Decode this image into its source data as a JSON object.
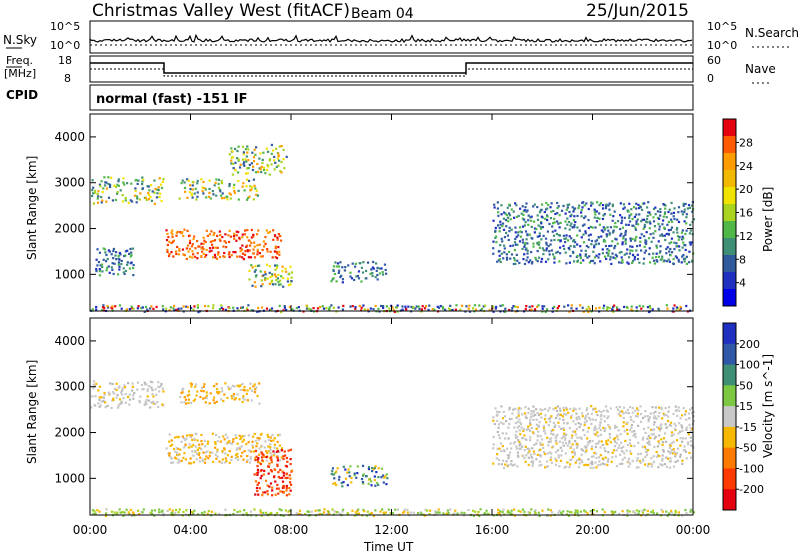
{
  "header": {
    "title": "Christmas Valley West (fitACF)",
    "beam": "Beam 04",
    "date": "25/Jun/2015"
  },
  "status_panels": {
    "nsky": {
      "label": "N.Sky",
      "ticks": [
        "10^5",
        "10^0"
      ],
      "right_label": "N.Search",
      "right_ticks": [
        "10^5",
        "10^0"
      ]
    },
    "freq": {
      "label_line1": "Freq.",
      "label_line2": "[MHz]",
      "ticks": [
        "18",
        "8"
      ],
      "right_label": "Nave",
      "right_ticks": [
        "60",
        "0"
      ]
    },
    "cpid": {
      "label": "CPID",
      "value": "normal (fast) -151 IF"
    }
  },
  "chart_data": [
    {
      "type": "heatmap",
      "name": "power-panel",
      "ylabel": "Slant Range [km]",
      "y_ticks": [
        "4000",
        "3000",
        "2000",
        "1000"
      ],
      "ylim": [
        200,
        4500
      ],
      "x_ticks": [
        "00:00",
        "04:00",
        "08:00",
        "12:00",
        "16:00",
        "20:00",
        "00:00"
      ],
      "xlim_hours": [
        0,
        24
      ],
      "colorbar": {
        "label": "Power [dB]",
        "ticks": [
          "28",
          "24",
          "20",
          "16",
          "12",
          "8",
          "4"
        ],
        "colors": [
          "#e4000f",
          "#ff5a00",
          "#ff9c00",
          "#f3b800",
          "#f0e300",
          "#a8d420",
          "#4fb848",
          "#3f8f76",
          "#305a9c",
          "#1f2fbf",
          "#0000e8"
        ]
      },
      "regions": [
        {
          "t": [
            0.0,
            2.9
          ],
          "r": [
            2550,
            3150
          ],
          "level": "mid"
        },
        {
          "t": [
            3.5,
            6.7
          ],
          "r": [
            2650,
            3100
          ],
          "level": "mid"
        },
        {
          "t": [
            5.5,
            7.8
          ],
          "r": [
            3200,
            3850
          ],
          "level": "mid"
        },
        {
          "t": [
            3.0,
            7.6
          ],
          "r": [
            1350,
            2000
          ],
          "level": "high"
        },
        {
          "t": [
            0.2,
            1.7
          ],
          "r": [
            1000,
            1600
          ],
          "level": "low"
        },
        {
          "t": [
            6.3,
            8.0
          ],
          "r": [
            750,
            1250
          ],
          "level": "mid"
        },
        {
          "t": [
            9.5,
            11.8
          ],
          "r": [
            850,
            1300
          ],
          "level": "low"
        },
        {
          "t": [
            16.0,
            24.0
          ],
          "r": [
            1250,
            2600
          ],
          "level": "low"
        },
        {
          "t": [
            0.0,
            24.0
          ],
          "r": [
            200,
            350
          ],
          "level": "mixed"
        }
      ]
    },
    {
      "type": "heatmap",
      "name": "velocity-panel",
      "ylabel": "Slant Range [km]",
      "y_ticks": [
        "4000",
        "3000",
        "2000",
        "1000"
      ],
      "ylim": [
        200,
        4500
      ],
      "x_ticks": [
        "00:00",
        "04:00",
        "08:00",
        "12:00",
        "16:00",
        "20:00",
        "00:00"
      ],
      "xlabel": "Time UT",
      "xlim_hours": [
        0,
        24
      ],
      "colorbar": {
        "label": "Velocity [m s^-1]",
        "ticks": [
          "200",
          "100",
          "50",
          "15",
          "-15",
          "-50",
          "-100",
          "-200"
        ],
        "colors": [
          "#1f2fbf",
          "#2f58a8",
          "#3f8f76",
          "#7cc842",
          "#c8c8c8",
          "#f6b800",
          "#ff7a00",
          "#ff3a00",
          "#e4000f"
        ]
      },
      "regions": [
        {
          "t": [
            0.0,
            2.9
          ],
          "r": [
            2550,
            3150
          ],
          "level": "grey"
        },
        {
          "t": [
            3.5,
            6.7
          ],
          "r": [
            2650,
            3100
          ],
          "level": "orange"
        },
        {
          "t": [
            3.0,
            7.6
          ],
          "r": [
            1350,
            2000
          ],
          "level": "grey-orange"
        },
        {
          "t": [
            6.5,
            8.0
          ],
          "r": [
            650,
            1650
          ],
          "level": "red"
        },
        {
          "t": [
            9.5,
            11.8
          ],
          "r": [
            850,
            1300
          ],
          "level": "blue-green"
        },
        {
          "t": [
            16.0,
            24.0
          ],
          "r": [
            1250,
            2600
          ],
          "level": "grey"
        },
        {
          "t": [
            0.0,
            24.0
          ],
          "r": [
            200,
            350
          ],
          "level": "green"
        }
      ]
    }
  ]
}
